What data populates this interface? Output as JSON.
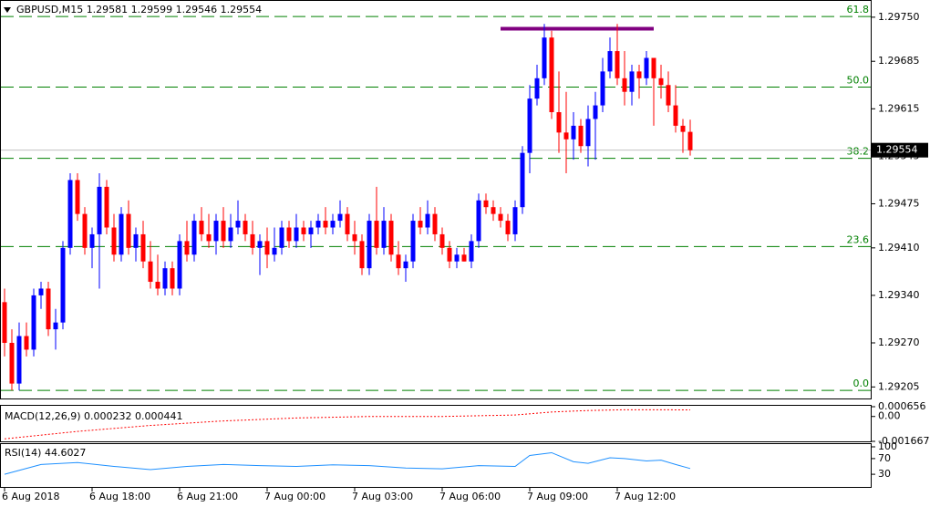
{
  "chart_data": {
    "type": "candlestick",
    "title": "GBPUSD,M15  1.29581 1.29599 1.29546 1.29554",
    "up_color": "#0000ff",
    "down_color": "#ff0000",
    "ylim": [
      1.29188,
      1.29774
    ],
    "yticks": [
      {
        "value": 1.2975,
        "label": "1.29750"
      },
      {
        "value": 1.29685,
        "label": "1.29685"
      },
      {
        "value": 1.29615,
        "label": "1.29615"
      },
      {
        "value": 1.29545,
        "label": "1.29545"
      },
      {
        "value": 1.29475,
        "label": "1.29475"
      },
      {
        "value": 1.2941,
        "label": "1.29410"
      },
      {
        "value": 1.2934,
        "label": "1.29340"
      },
      {
        "value": 1.2927,
        "label": "1.29270"
      },
      {
        "value": 1.29205,
        "label": "1.29205"
      }
    ],
    "last_price": 1.29554,
    "fib_color": "#008000",
    "fib_levels": [
      {
        "label": "61.8",
        "value": 1.29751
      },
      {
        "label": "50.0",
        "value": 1.29647
      },
      {
        "label": "38.2",
        "value": 1.29542
      },
      {
        "label": "23.6",
        "value": 1.29412
      },
      {
        "label": "0.0",
        "value": 1.292
      }
    ],
    "resistance": {
      "value": 1.29733,
      "color": "#800080",
      "from": 68,
      "to": 89
    },
    "categories": [
      "6 Aug 2018",
      null,
      null,
      null,
      null,
      null,
      null,
      null,
      null,
      null,
      null,
      null,
      "6 Aug 18:00",
      null,
      null,
      null,
      null,
      null,
      null,
      null,
      null,
      null,
      null,
      null,
      "6 Aug 21:00",
      null,
      null,
      null,
      null,
      null,
      null,
      null,
      null,
      null,
      null,
      null,
      "7 Aug 00:00",
      null,
      null,
      null,
      null,
      null,
      null,
      null,
      null,
      null,
      null,
      null,
      "7 Aug 03:00",
      null,
      null,
      null,
      null,
      null,
      null,
      null,
      null,
      null,
      null,
      null,
      "7 Aug 06:00",
      null,
      null,
      null,
      null,
      null,
      null,
      null,
      null,
      null,
      null,
      null,
      "7 Aug 09:00",
      null,
      null,
      null,
      null,
      null,
      null,
      null,
      null,
      null,
      null,
      null,
      "7 Aug 12:00",
      null,
      null,
      null,
      null,
      null,
      null,
      null,
      null,
      null,
      null
    ],
    "ohlc": [
      [
        1.2933,
        1.2935,
        1.2925,
        1.2927
      ],
      [
        1.2927,
        1.2929,
        1.292,
        1.2921
      ],
      [
        1.2921,
        1.293,
        1.292,
        1.2928
      ],
      [
        1.2928,
        1.293,
        1.2925,
        1.2926
      ],
      [
        1.2926,
        1.2935,
        1.2925,
        1.2934
      ],
      [
        1.2934,
        1.2936,
        1.2932,
        1.2935
      ],
      [
        1.2935,
        1.2936,
        1.2928,
        1.2929
      ],
      [
        1.2929,
        1.2932,
        1.2926,
        1.293
      ],
      [
        1.293,
        1.2942,
        1.2929,
        1.2941
      ],
      [
        1.2941,
        1.2952,
        1.294,
        1.2951
      ],
      [
        1.2951,
        1.2952,
        1.2945,
        1.2946
      ],
      [
        1.2946,
        1.2947,
        1.294,
        1.2941
      ],
      [
        1.2941,
        1.2944,
        1.2938,
        1.2943
      ],
      [
        1.2943,
        1.2952,
        1.2935,
        1.295
      ],
      [
        1.295,
        1.2951,
        1.2943,
        1.2944
      ],
      [
        1.2944,
        1.2946,
        1.2939,
        1.294
      ],
      [
        1.294,
        1.2947,
        1.2939,
        1.2946
      ],
      [
        1.2946,
        1.2948,
        1.294,
        1.2941
      ],
      [
        1.2941,
        1.2944,
        1.2939,
        1.2943
      ],
      [
        1.2943,
        1.2945,
        1.2938,
        1.2939
      ],
      [
        1.2939,
        1.2942,
        1.2935,
        1.2936
      ],
      [
        1.2936,
        1.294,
        1.2934,
        1.2935
      ],
      [
        1.2935,
        1.2939,
        1.2934,
        1.2938
      ],
      [
        1.2938,
        1.2939,
        1.2934,
        1.2935
      ],
      [
        1.2935,
        1.2943,
        1.2934,
        1.2942
      ],
      [
        1.2942,
        1.2945,
        1.2939,
        1.294
      ],
      [
        1.294,
        1.2946,
        1.2939,
        1.2945
      ],
      [
        1.2945,
        1.2947,
        1.2942,
        1.2943
      ],
      [
        1.2943,
        1.2946,
        1.2941,
        1.2942
      ],
      [
        1.2942,
        1.2946,
        1.294,
        1.2945
      ],
      [
        1.2945,
        1.2947,
        1.2941,
        1.2942
      ],
      [
        1.2942,
        1.2946,
        1.2941,
        1.2944
      ],
      [
        1.2944,
        1.2948,
        1.2943,
        1.2945
      ],
      [
        1.2945,
        1.2946,
        1.2942,
        1.2943
      ],
      [
        1.2943,
        1.2945,
        1.294,
        1.2941
      ],
      [
        1.2941,
        1.2943,
        1.2937,
        1.2942
      ],
      [
        1.2942,
        1.2944,
        1.2938,
        1.294
      ],
      [
        1.294,
        1.2944,
        1.2939,
        1.2941
      ],
      [
        1.2941,
        1.2945,
        1.294,
        1.2944
      ],
      [
        1.2944,
        1.2945,
        1.2941,
        1.2942
      ],
      [
        1.2942,
        1.2946,
        1.2941,
        1.2944
      ],
      [
        1.2944,
        1.2945,
        1.2942,
        1.2943
      ],
      [
        1.2943,
        1.2945,
        1.2941,
        1.2944
      ],
      [
        1.2944,
        1.2946,
        1.2943,
        1.2945
      ],
      [
        1.2945,
        1.2947,
        1.2943,
        1.2944
      ],
      [
        1.2944,
        1.2946,
        1.2943,
        1.2945
      ],
      [
        1.2945,
        1.2948,
        1.2944,
        1.2946
      ],
      [
        1.2946,
        1.2947,
        1.2942,
        1.2943
      ],
      [
        1.2943,
        1.2945,
        1.294,
        1.2942
      ],
      [
        1.2942,
        1.2943,
        1.2937,
        1.2938
      ],
      [
        1.2938,
        1.2946,
        1.2937,
        1.2945
      ],
      [
        1.2945,
        1.295,
        1.294,
        1.2941
      ],
      [
        1.2941,
        1.2947,
        1.294,
        1.2945
      ],
      [
        1.2945,
        1.2946,
        1.2939,
        1.294
      ],
      [
        1.294,
        1.2942,
        1.2937,
        1.2938
      ],
      [
        1.2938,
        1.294,
        1.2936,
        1.2939
      ],
      [
        1.2939,
        1.2946,
        1.2938,
        1.2945
      ],
      [
        1.2945,
        1.2947,
        1.2943,
        1.2944
      ],
      [
        1.2944,
        1.2948,
        1.2943,
        1.2946
      ],
      [
        1.2946,
        1.2947,
        1.2942,
        1.2943
      ],
      [
        1.2943,
        1.2944,
        1.294,
        1.2941
      ],
      [
        1.2941,
        1.2942,
        1.2938,
        1.2939
      ],
      [
        1.2939,
        1.2941,
        1.2938,
        1.294
      ],
      [
        1.294,
        1.2941,
        1.2939,
        1.2939
      ],
      [
        1.2939,
        1.2943,
        1.2938,
        1.2942
      ],
      [
        1.2942,
        1.2949,
        1.2941,
        1.2948
      ],
      [
        1.2948,
        1.2949,
        1.2946,
        1.2947
      ],
      [
        1.2947,
        1.2948,
        1.2945,
        1.2946
      ],
      [
        1.2946,
        1.2947,
        1.2944,
        1.2945
      ],
      [
        1.2945,
        1.2946,
        1.2942,
        1.2943
      ],
      [
        1.2943,
        1.2948,
        1.2942,
        1.2947
      ],
      [
        1.2947,
        1.2956,
        1.2946,
        1.2955
      ],
      [
        1.2955,
        1.2965,
        1.2952,
        1.2963
      ],
      [
        1.2963,
        1.2968,
        1.2962,
        1.2966
      ],
      [
        1.2966,
        1.2974,
        1.2965,
        1.2972
      ],
      [
        1.2972,
        1.2973,
        1.296,
        1.2961
      ],
      [
        1.2961,
        1.2967,
        1.2955,
        1.2958
      ],
      [
        1.2958,
        1.2964,
        1.2952,
        1.2957
      ],
      [
        1.2957,
        1.2961,
        1.2954,
        1.2959
      ],
      [
        1.2959,
        1.296,
        1.2955,
        1.2956
      ],
      [
        1.2956,
        1.2962,
        1.2953,
        1.296
      ],
      [
        1.296,
        1.2964,
        1.2954,
        1.2962
      ],
      [
        1.2962,
        1.2969,
        1.2961,
        1.2967
      ],
      [
        1.2967,
        1.2972,
        1.2966,
        1.297
      ],
      [
        1.297,
        1.2974,
        1.2965,
        1.2966
      ],
      [
        1.2966,
        1.297,
        1.2962,
        1.2964
      ],
      [
        1.2964,
        1.2968,
        1.2962,
        1.2967
      ],
      [
        1.2967,
        1.2968,
        1.2963,
        1.2966
      ],
      [
        1.2966,
        1.297,
        1.2965,
        1.2969
      ],
      [
        1.2969,
        1.2969,
        1.2959,
        1.2966
      ],
      [
        1.2966,
        1.2968,
        1.2963,
        1.2965
      ],
      [
        1.2965,
        1.2967,
        1.2961,
        1.2962
      ],
      [
        1.2962,
        1.2965,
        1.2958,
        1.2959
      ],
      [
        1.2959,
        1.296,
        1.2955,
        1.29581
      ],
      [
        1.29581,
        1.29599,
        1.29546,
        1.29554
      ]
    ],
    "macd": {
      "label": "MACD(12,26,9) 0.000232 0.000441",
      "color": "#ff0000",
      "ylim": [
        -0.001667,
        0.000656
      ],
      "yticks": [
        {
          "value": 0.000656,
          "label": "0.000656"
        },
        {
          "value": 0,
          "label": "0.00"
        },
        {
          "value": -0.001667,
          "label": "-0.001667"
        }
      ],
      "x": [
        0,
        10,
        20,
        30,
        40,
        50,
        60,
        70,
        75,
        80,
        85,
        90,
        94
      ],
      "values": [
        -0.0015,
        -0.001,
        -0.0006,
        -0.0003,
        -0.0001,
        0,
        0,
        0.0001,
        0.0003,
        0.0004,
        0.00045,
        0.00045,
        0.000441
      ]
    },
    "rsi": {
      "label": "RSI(14) 44.6027",
      "color": "#1e90ff",
      "ylim": [
        0,
        100
      ],
      "yticks": [
        100,
        70,
        30
      ],
      "x": [
        0,
        5,
        10,
        15,
        20,
        25,
        30,
        35,
        40,
        45,
        50,
        55,
        60,
        65,
        70,
        72,
        75,
        78,
        80,
        83,
        85,
        88,
        90,
        92,
        94
      ],
      "values": [
        30,
        55,
        60,
        50,
        42,
        50,
        55,
        52,
        50,
        54,
        52,
        46,
        44,
        52,
        50,
        78,
        85,
        62,
        58,
        72,
        70,
        64,
        66,
        55,
        44.6027
      ]
    }
  }
}
